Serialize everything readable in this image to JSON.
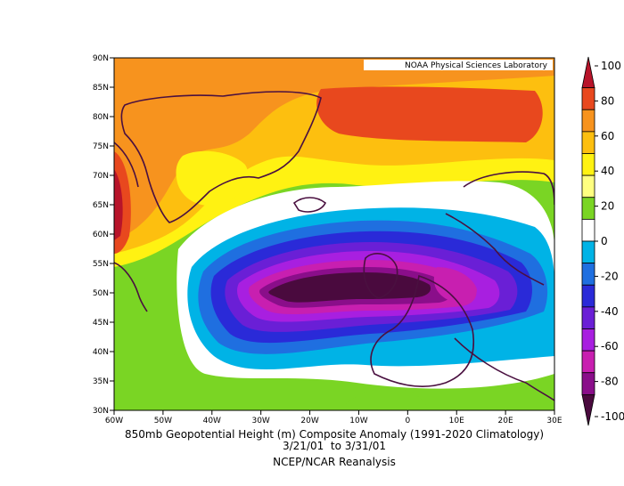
{
  "map": {
    "credit": "NOAA Physical Sciences Laboratory",
    "lat_labels": [
      "90N",
      "85N",
      "80N",
      "75N",
      "70N",
      "65N",
      "60N",
      "55N",
      "50N",
      "45N",
      "40N",
      "35N",
      "30N"
    ],
    "lon_labels": [
      "60W",
      "50W",
      "40W",
      "30W",
      "20W",
      "10W",
      "0",
      "10E",
      "20E",
      "30E"
    ],
    "extent": {
      "lon_min": -60,
      "lon_max": 30,
      "lat_min": 30,
      "lat_max": 90
    }
  },
  "captions": {
    "line1": "850mb Geopotential Height (m) Composite Anomaly (1991-2020 Climatology)",
    "line2": "3/21/01  to 3/31/01",
    "line3": "NCEP/NCAR Reanalysis"
  },
  "colorbar": {
    "labels": [
      "100",
      "80",
      "60",
      "40",
      "20",
      "0",
      "-20",
      "-40",
      "-60",
      "-80",
      "-100"
    ],
    "colors": [
      "#b8142a",
      "#e8481e",
      "#f7931e",
      "#fdbf0f",
      "#fff212",
      "#ffff80",
      "#7ad524",
      "#ffffff",
      "#00b3e6",
      "#1f6fe0",
      "#2a2ad8",
      "#6a1fd6",
      "#a81fe0",
      "#c81fb0",
      "#8a0e8a",
      "#4a0a3e"
    ]
  }
}
